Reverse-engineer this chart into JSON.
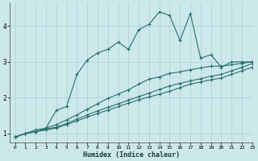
{
  "xlabel": "Humidex (Indice chaleur)",
  "xlim": [
    -0.5,
    23
  ],
  "ylim": [
    0.75,
    4.65
  ],
  "yticks": [
    1,
    2,
    3,
    4
  ],
  "xticks": [
    0,
    1,
    2,
    3,
    4,
    5,
    6,
    7,
    8,
    9,
    10,
    11,
    12,
    13,
    14,
    15,
    16,
    17,
    18,
    19,
    20,
    21,
    22,
    23
  ],
  "background_color": "#cce8ea",
  "grid_color": "#b0d4d8",
  "line_color": "#2a7068",
  "series": [
    {
      "x": [
        0,
        1,
        2,
        3,
        4,
        5,
        6,
        7,
        8,
        9,
        10,
        11,
        12,
        13,
        14,
        15,
        16,
        17,
        18,
        19,
        20,
        21,
        22,
        23
      ],
      "y": [
        0.9,
        1.0,
        1.1,
        1.15,
        1.65,
        1.75,
        2.65,
        3.05,
        3.25,
        3.35,
        3.55,
        3.35,
        3.9,
        4.05,
        4.4,
        4.3,
        3.6,
        4.35,
        3.1,
        3.2,
        2.85,
        3.0,
        3.0,
        3.0
      ]
    },
    {
      "x": [
        0,
        1,
        2,
        3,
        4,
        5,
        6,
        7,
        8,
        9,
        10,
        11,
        12,
        13,
        14,
        15,
        16,
        17,
        18,
        19,
        20,
        21,
        22,
        23
      ],
      "y": [
        0.9,
        1.0,
        1.05,
        1.15,
        1.25,
        1.38,
        1.52,
        1.68,
        1.83,
        1.98,
        2.1,
        2.22,
        2.38,
        2.52,
        2.58,
        2.68,
        2.72,
        2.78,
        2.83,
        2.88,
        2.88,
        2.92,
        2.96,
        3.0
      ]
    },
    {
      "x": [
        0,
        1,
        2,
        3,
        4,
        5,
        6,
        7,
        8,
        9,
        10,
        11,
        12,
        13,
        14,
        15,
        16,
        17,
        18,
        19,
        20,
        21,
        22,
        23
      ],
      "y": [
        0.9,
        1.0,
        1.05,
        1.12,
        1.18,
        1.28,
        1.4,
        1.52,
        1.63,
        1.73,
        1.83,
        1.93,
        2.03,
        2.13,
        2.23,
        2.33,
        2.4,
        2.47,
        2.53,
        2.6,
        2.65,
        2.75,
        2.85,
        2.95
      ]
    },
    {
      "x": [
        0,
        1,
        2,
        3,
        4,
        5,
        6,
        7,
        8,
        9,
        10,
        11,
        12,
        13,
        14,
        15,
        16,
        17,
        18,
        19,
        20,
        21,
        22,
        23
      ],
      "y": [
        0.9,
        1.0,
        1.05,
        1.1,
        1.15,
        1.25,
        1.35,
        1.46,
        1.56,
        1.65,
        1.75,
        1.85,
        1.94,
        2.02,
        2.1,
        2.18,
        2.28,
        2.38,
        2.44,
        2.5,
        2.55,
        2.65,
        2.75,
        2.85
      ]
    }
  ]
}
